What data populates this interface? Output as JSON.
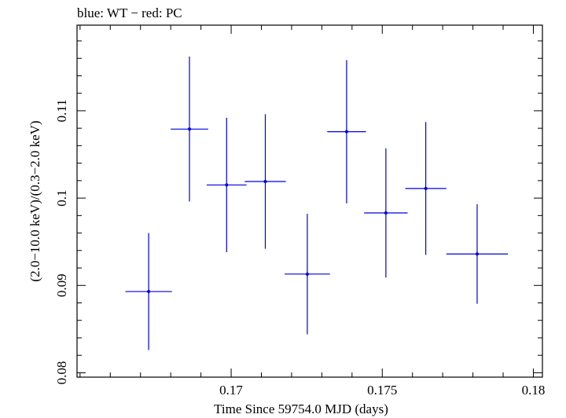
{
  "chart_data": {
    "type": "scatter",
    "title": "blue: WT − red: PC",
    "xlabel": "Time Since 59754.0 MJD (days)",
    "ylabel": "(2.0−10.0 keV)/(0.3−2.0 keV)",
    "xlim": [
      0.1649,
      0.1803
    ],
    "ylim": [
      0.0795,
      0.1198
    ],
    "x_ticks": [
      0.17,
      0.175,
      0.18
    ],
    "x_tick_labels": [
      "0.17",
      "0.175",
      "0.18"
    ],
    "y_ticks": [
      0.08,
      0.09,
      0.1,
      0.11
    ],
    "y_tick_labels": [
      "0.08",
      "0.09",
      "0.1",
      "0.11"
    ],
    "x_minor_step": 0.001,
    "y_minor_step": 0.002,
    "series": [
      {
        "name": "WT",
        "color": "#0000dd",
        "points": [
          {
            "x": 0.16727,
            "y": 0.0893,
            "xerr": 0.00077,
            "yerr": 0.0067
          },
          {
            "x": 0.16862,
            "y": 0.1079,
            "xerr": 0.00062,
            "yerr": 0.0083
          },
          {
            "x": 0.16985,
            "y": 0.1015,
            "xerr": 0.00066,
            "yerr": 0.0077
          },
          {
            "x": 0.17113,
            "y": 0.1019,
            "xerr": 0.00068,
            "yerr": 0.0077
          },
          {
            "x": 0.17252,
            "y": 0.0913,
            "xerr": 0.00075,
            "yerr": 0.0069
          },
          {
            "x": 0.17382,
            "y": 0.1076,
            "xerr": 0.00064,
            "yerr": 0.0082
          },
          {
            "x": 0.17512,
            "y": 0.0983,
            "xerr": 0.00072,
            "yerr": 0.0074
          },
          {
            "x": 0.17644,
            "y": 0.1011,
            "xerr": 0.00068,
            "yerr": 0.0076
          },
          {
            "x": 0.17814,
            "y": 0.0936,
            "xerr": 0.00102,
            "yerr": 0.0057
          }
        ]
      }
    ]
  }
}
